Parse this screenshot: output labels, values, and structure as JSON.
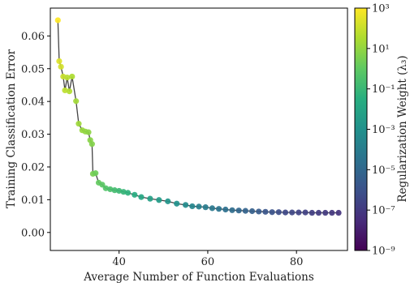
{
  "chart_data": {
    "type": "scatter",
    "xlabel": "Average Number of Function Evaluations",
    "ylabel": "Training Classification Error",
    "xlim": [
      24.5,
      91.5
    ],
    "ylim": [
      -0.0055,
      0.0685
    ],
    "xticks": [
      40,
      60,
      80
    ],
    "xtick_labels": [
      "40",
      "60",
      "80"
    ],
    "yticks": [
      0.0,
      0.01,
      0.02,
      0.03,
      0.04,
      0.05,
      0.06
    ],
    "ytick_labels": [
      "0.00",
      "0.01",
      "0.02",
      "0.03",
      "0.04",
      "0.05",
      "0.06"
    ],
    "grid": false,
    "colorbar": {
      "label": "Regularization Weight (λ₃)",
      "scale": "log",
      "range": [
        1e-09,
        1000
      ],
      "tick_exponents": [
        3,
        1,
        -1,
        -3,
        -5,
        -7,
        -9
      ],
      "tick_labels": [
        "10³",
        "10¹",
        "10⁻¹",
        "10⁻³",
        "10⁻⁵",
        "10⁻⁷",
        "10⁻⁹"
      ],
      "colormap": "viridis"
    },
    "line_color": "#444444",
    "x": [
      26.2,
      26.5,
      26.9,
      27.4,
      27.8,
      28.3,
      28.8,
      29.4,
      30.3,
      30.9,
      31.7,
      32.4,
      33.1,
      33.5,
      33.9,
      34.1,
      34.7,
      35.4,
      36.2,
      37.0,
      38.0,
      39.0,
      40.0,
      41.0,
      42.0,
      43.5,
      45.0,
      47.0,
      49.0,
      51.0,
      53.0,
      55.0,
      56.5,
      58.0,
      59.5,
      61.0,
      62.5,
      64.0,
      65.5,
      67.0,
      68.5,
      70.0,
      71.5,
      73.0,
      74.5,
      76.0,
      77.5,
      79.0,
      80.5,
      82.0,
      83.5,
      85.0,
      86.5,
      88.0,
      89.5
    ],
    "y": [
      0.0648,
      0.0523,
      0.0506,
      0.0476,
      0.0434,
      0.0473,
      0.0431,
      0.0476,
      0.0401,
      0.0332,
      0.0312,
      0.0308,
      0.0306,
      0.0282,
      0.027,
      0.0179,
      0.0181,
      0.0152,
      0.0146,
      0.0135,
      0.0132,
      0.0129,
      0.0127,
      0.0124,
      0.0121,
      0.0115,
      0.0108,
      0.0103,
      0.0099,
      0.0095,
      0.0088,
      0.0084,
      0.008,
      0.0079,
      0.0077,
      0.0074,
      0.0072,
      0.007,
      0.0068,
      0.0067,
      0.0066,
      0.0065,
      0.0064,
      0.0063,
      0.0062,
      0.0062,
      0.0061,
      0.0061,
      0.0061,
      0.0061,
      0.006,
      0.006,
      0.006,
      0.006,
      0.006
    ],
    "log10_lambda": [
      3.0,
      2.4,
      2.2,
      2.0,
      1.8,
      1.7,
      1.6,
      1.5,
      1.3,
      1.2,
      1.1,
      1.0,
      0.9,
      0.8,
      0.7,
      0.5,
      0.3,
      0.1,
      -0.1,
      -0.3,
      -0.5,
      -0.7,
      -0.9,
      -1.1,
      -1.3,
      -1.6,
      -1.9,
      -2.2,
      -2.5,
      -2.8,
      -3.0,
      -3.3,
      -3.6,
      -3.8,
      -4.0,
      -4.2,
      -4.4,
      -4.6,
      -4.8,
      -5.0,
      -5.2,
      -5.4,
      -5.6,
      -5.8,
      -6.0,
      -6.2,
      -6.4,
      -6.5,
      -6.6,
      -6.7,
      -6.8,
      -6.9,
      -7.0,
      -7.1,
      -7.2
    ]
  }
}
